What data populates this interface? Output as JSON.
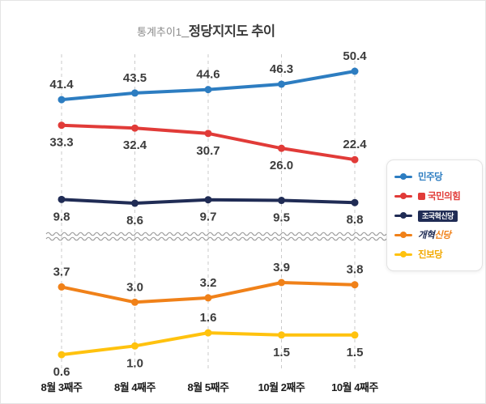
{
  "title": {
    "prefix": "통계추이1",
    "main": "_정당지지도 추이"
  },
  "chart_data": {
    "type": "line",
    "title": "정당지지도 추이",
    "categories": [
      "8월 3째주",
      "8월 4째주",
      "8월 5째주",
      "10월 2째주",
      "10월 4째주"
    ],
    "series": [
      {
        "name": "민주당",
        "color": "#2d7dc1",
        "panel": "top",
        "values": [
          41.4,
          43.5,
          44.6,
          46.3,
          50.4
        ],
        "label_side": [
          "above",
          "above",
          "above",
          "above",
          "above"
        ]
      },
      {
        "name": "국민의힘",
        "color": "#e13b38",
        "panel": "top",
        "values": [
          33.3,
          32.4,
          30.7,
          26.0,
          22.4
        ],
        "label_side": [
          "below",
          "below",
          "below",
          "below",
          "above"
        ]
      },
      {
        "name": "조국혁신당",
        "color": "#202c55",
        "panel": "top",
        "values": [
          9.8,
          8.6,
          9.7,
          9.5,
          8.8
        ],
        "label_side": [
          "below",
          "below",
          "below",
          "below",
          "below"
        ]
      },
      {
        "name": "개혁신당",
        "color": "#f08119",
        "panel": "bottom",
        "values": [
          3.7,
          3.0,
          3.2,
          3.9,
          3.8
        ],
        "label_side": [
          "above",
          "above",
          "above",
          "above",
          "above"
        ]
      },
      {
        "name": "진보당",
        "color": "#ffc20e",
        "panel": "bottom",
        "values": [
          0.6,
          1.0,
          1.6,
          1.5,
          1.5
        ],
        "label_side": [
          "below",
          "below",
          "above",
          "below",
          "below"
        ]
      }
    ],
    "axis_break": true,
    "grid": "vertical-dashed",
    "legend_position": "right",
    "value_label_decimals": 1,
    "panel_top_range": [
      8,
      52
    ],
    "panel_bottom_range": [
      0,
      4.5
    ]
  },
  "legend": {
    "items": [
      {
        "label": "민주당",
        "color": "#2d7dc1",
        "style": "text"
      },
      {
        "label": "국민의힘",
        "color": "#e13b38",
        "style": "text",
        "icon": "party-emblem"
      },
      {
        "label": "조국혁신당",
        "color": "#202c55",
        "style": "badge"
      },
      {
        "label": "개혁신당",
        "color": "#f08119",
        "style": "parts",
        "parts": [
          {
            "text": "개혁",
            "color": "#202c55"
          },
          {
            "text": "신당",
            "color": "#f08119"
          }
        ]
      },
      {
        "label": "진보당",
        "color": "#ffc20e",
        "style": "text",
        "label_color": "#f2a900"
      }
    ]
  }
}
